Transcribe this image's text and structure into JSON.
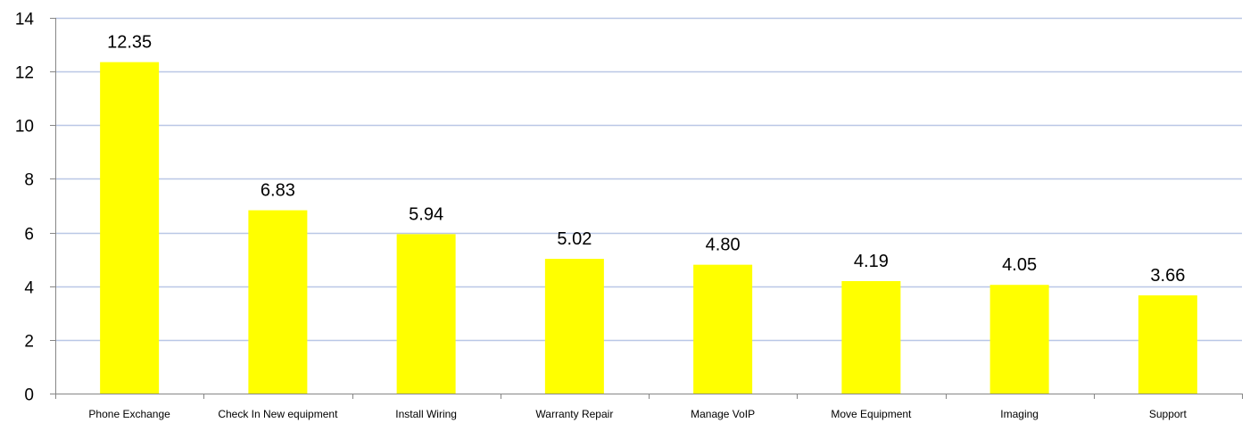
{
  "chart_data": {
    "type": "bar",
    "title": "",
    "xlabel": "",
    "ylabel": "",
    "categories": [
      "Phone Exchange",
      "Check In New equipment",
      "Install Wiring",
      "Warranty Repair",
      "Manage VoIP",
      "Move Equipment",
      "Imaging",
      "Support"
    ],
    "values": [
      12.35,
      6.83,
      5.94,
      5.02,
      4.8,
      4.19,
      4.05,
      3.66
    ],
    "data_labels": [
      "12.35",
      "6.83",
      "5.94",
      "5.02",
      "4.80",
      "4.19",
      "4.05",
      "3.66"
    ],
    "ylim": [
      0,
      14
    ],
    "yticks": [
      0,
      2,
      4,
      6,
      8,
      10,
      12,
      14
    ],
    "grid": true,
    "legend": "none",
    "colors": {
      "bar": "#FFFF00",
      "grid": "#B9C7E6",
      "axis": "#868686"
    }
  }
}
